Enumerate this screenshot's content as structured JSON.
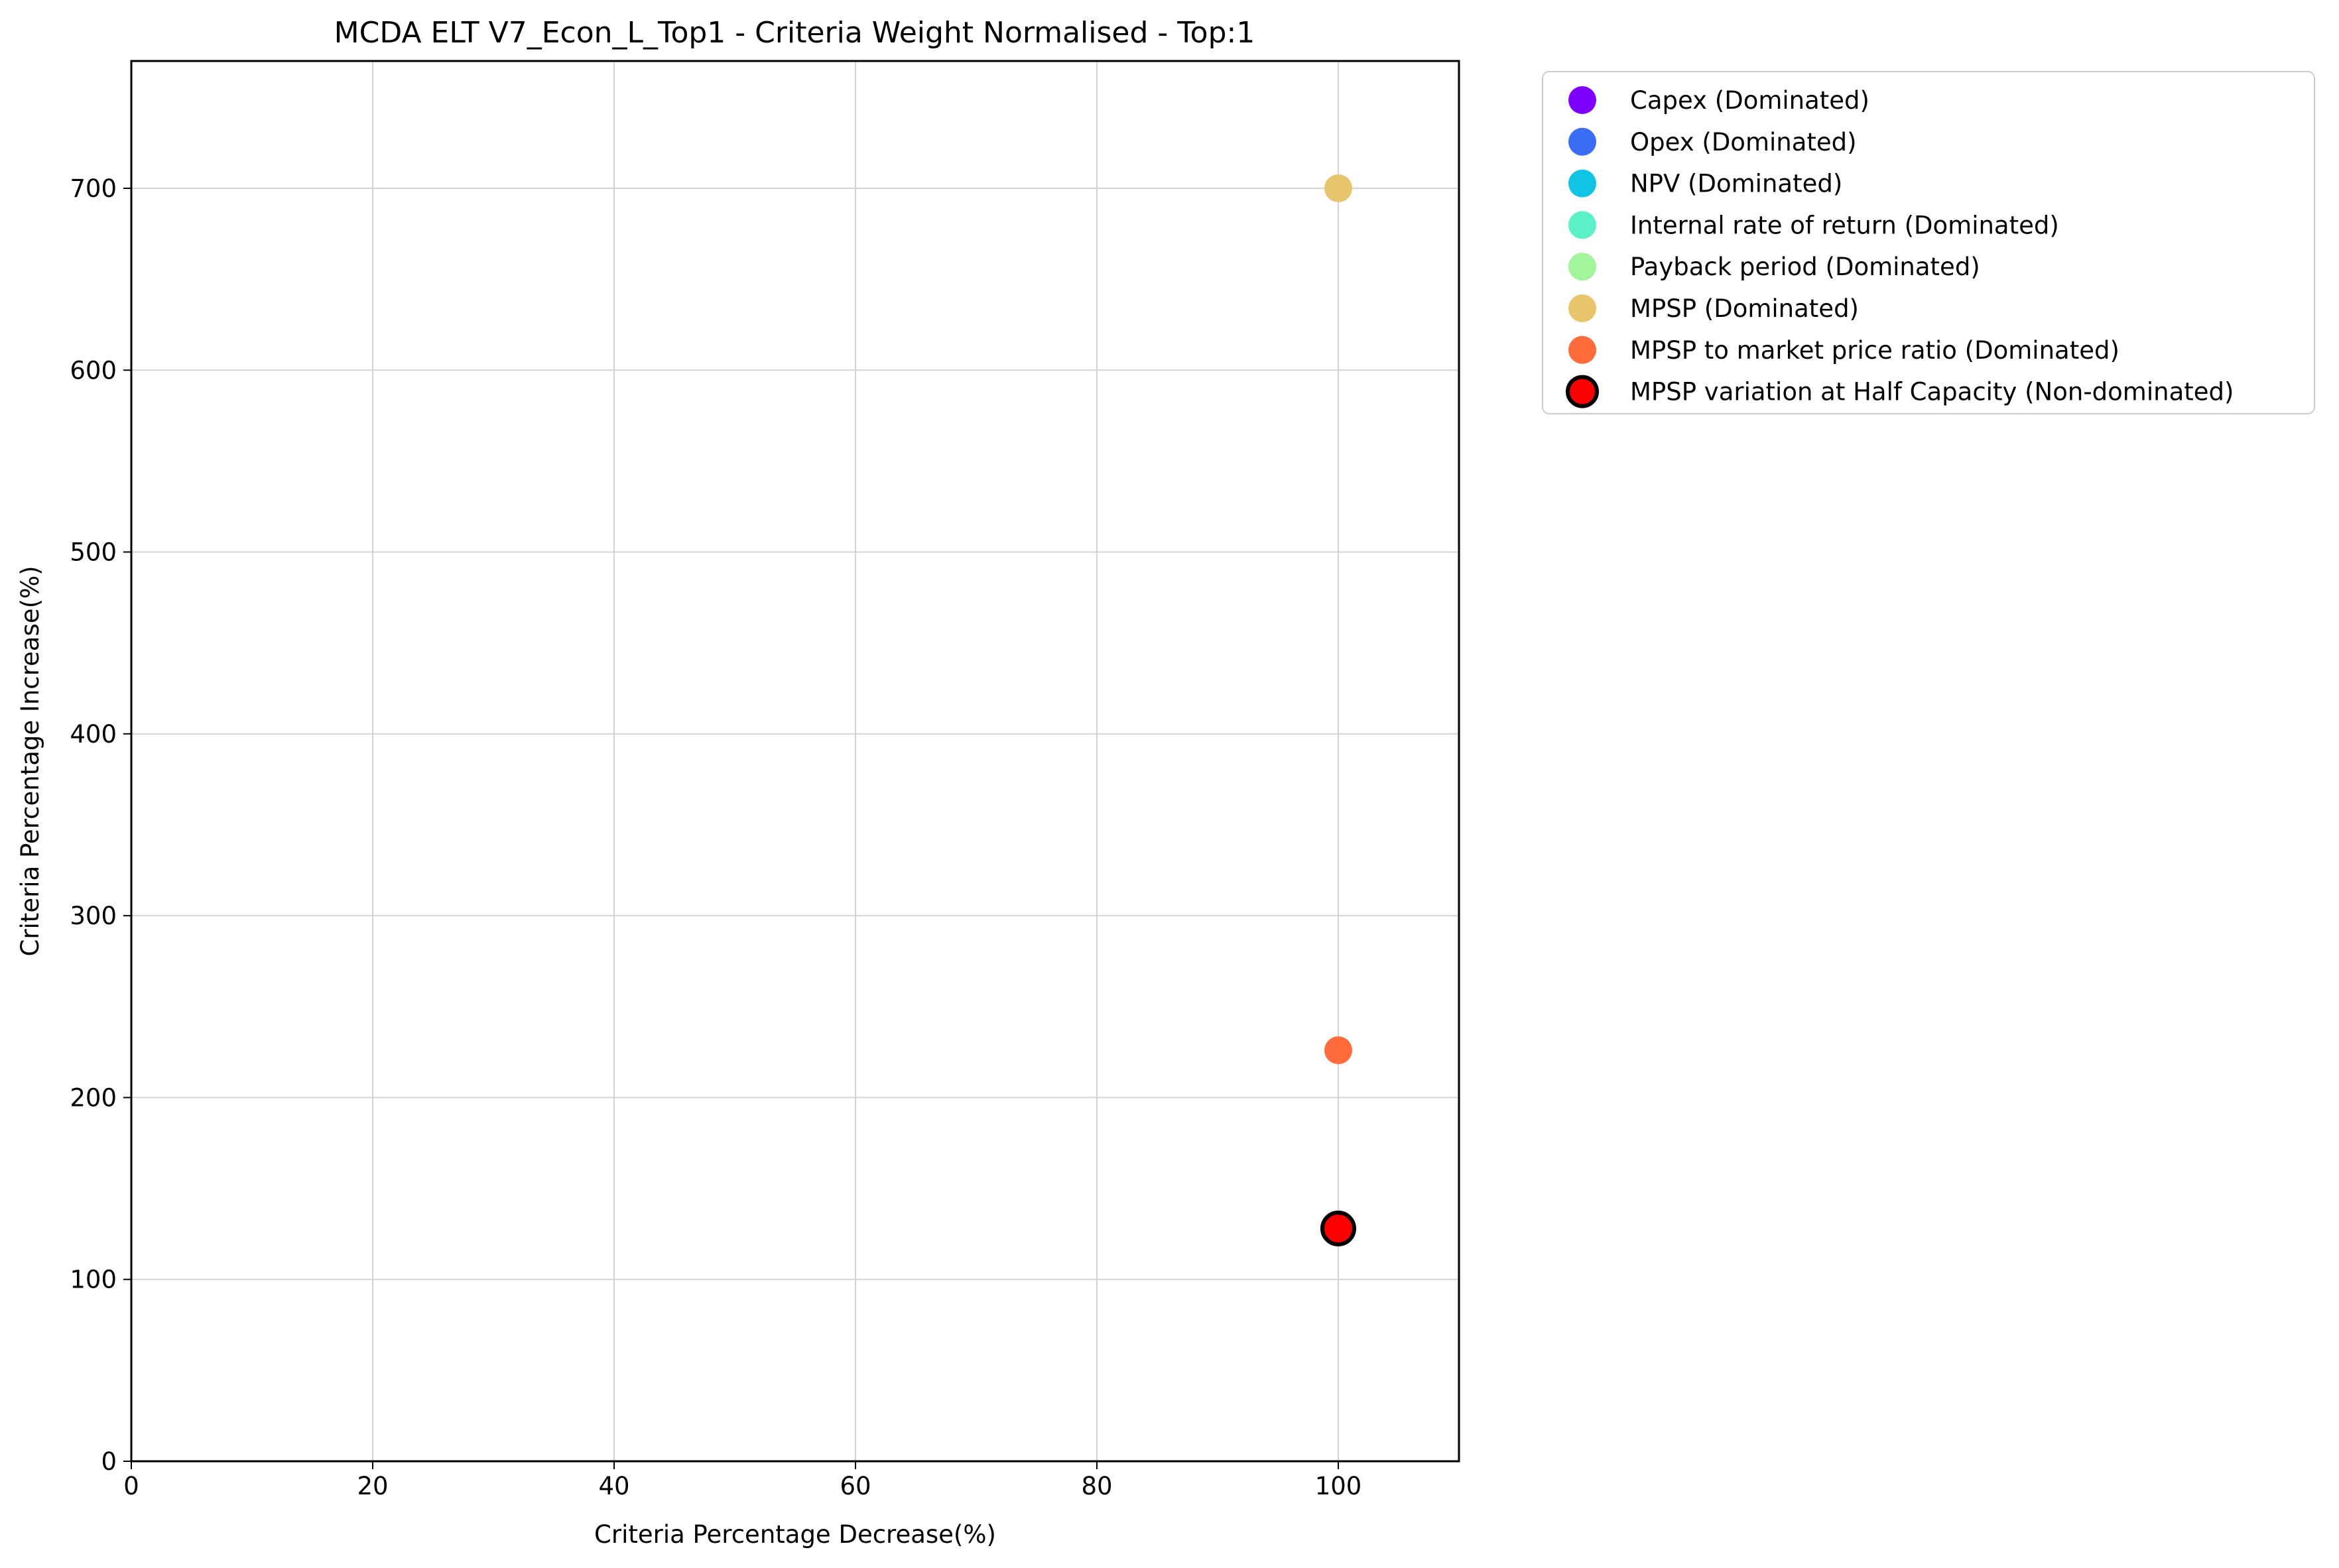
{
  "chart_data": {
    "type": "scatter",
    "title": "MCDA ELT V7_Econ_L_Top1 - Criteria Weight Normalised - Top:1",
    "xlabel": "Criteria Percentage Decrease(%)",
    "ylabel": "Criteria Percentage Increase(%)",
    "xlim": [
      0,
      110
    ],
    "ylim": [
      0,
      770
    ],
    "xticks": [
      0,
      20,
      40,
      60,
      80,
      100
    ],
    "yticks": [
      0,
      100,
      200,
      300,
      400,
      500,
      600,
      700
    ],
    "grid": true,
    "legend_position": "outside-right",
    "series": [
      {
        "name": "Capex (Dominated)",
        "color": "#7f00ff",
        "points": [],
        "outlined": false
      },
      {
        "name": "Opex (Dominated)",
        "color": "#3b6cf5",
        "points": [],
        "outlined": false
      },
      {
        "name": "NPV (Dominated)",
        "color": "#11c4e5",
        "points": [],
        "outlined": false
      },
      {
        "name": "Internal rate of return (Dominated)",
        "color": "#5cf0c6",
        "points": [],
        "outlined": false
      },
      {
        "name": "Payback period (Dominated)",
        "color": "#a3f59c",
        "points": [],
        "outlined": false
      },
      {
        "name": "MPSP (Dominated)",
        "color": "#e8c46c",
        "points": [
          {
            "x": 100,
            "y": 700
          }
        ],
        "outlined": false
      },
      {
        "name": "MPSP to market price ratio (Dominated)",
        "color": "#ff6b3a",
        "points": [
          {
            "x": 100,
            "y": 226
          }
        ],
        "outlined": false
      },
      {
        "name": "MPSP variation at Half Capacity (Non-dominated)",
        "color": "#ff0000",
        "points": [
          {
            "x": 100,
            "y": 128
          }
        ],
        "outlined": true
      }
    ]
  }
}
